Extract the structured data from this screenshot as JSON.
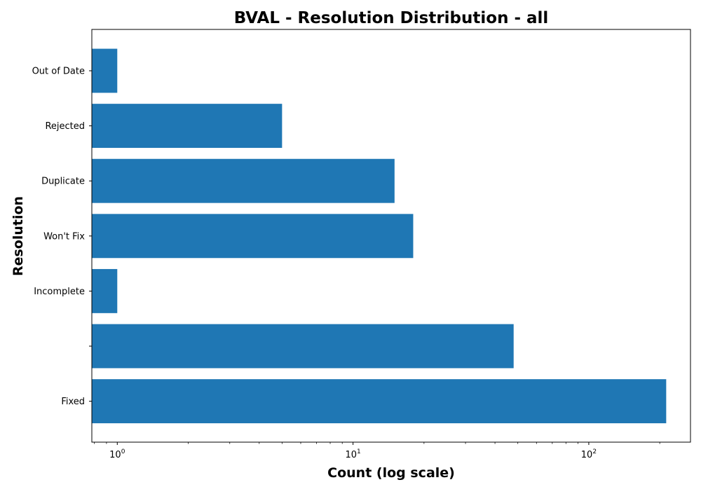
{
  "chart_data": {
    "type": "bar",
    "orientation": "horizontal",
    "title": "BVAL - Resolution Distribution - all",
    "xlabel": "Count (log scale)",
    "ylabel": "Resolution",
    "x_scale": "log",
    "xlim": [
      0.78,
      270
    ],
    "x_ticks": [
      {
        "value": 1,
        "base": "10",
        "exp": "0"
      },
      {
        "value": 10,
        "base": "10",
        "exp": "1"
      },
      {
        "value": 100,
        "base": "10",
        "exp": "2"
      }
    ],
    "categories": [
      "Out of Date",
      "Rejected",
      "Duplicate",
      "Won't Fix",
      "Incomplete",
      "",
      "Fixed"
    ],
    "values": [
      1,
      5,
      15,
      18,
      1,
      48,
      213
    ],
    "bar_color": "#1f77b4",
    "grid": false,
    "legend": "none"
  }
}
